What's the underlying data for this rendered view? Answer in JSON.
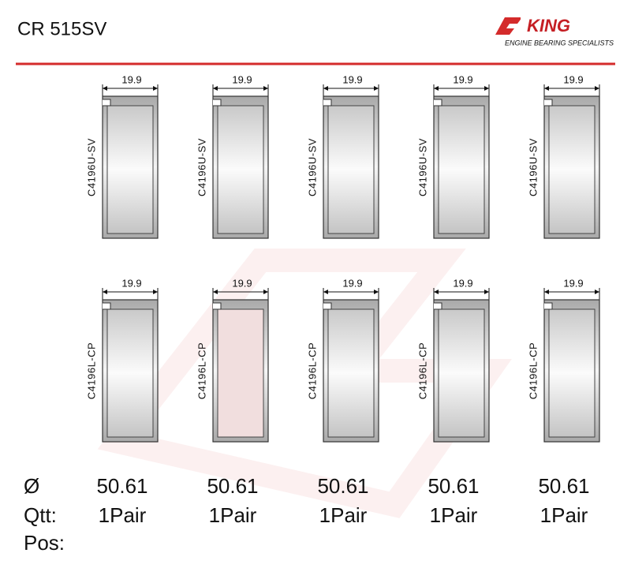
{
  "header": {
    "title": "CR 515SV"
  },
  "logo": {
    "brand": "KING",
    "tagline": "ENGINE BEARING SPECIALISTS"
  },
  "rows": [
    {
      "bearings": [
        {
          "width": "19.9",
          "part": "C4196U-SV"
        },
        {
          "width": "19.9",
          "part": "C4196U-SV"
        },
        {
          "width": "19.9",
          "part": "C4196U-SV"
        },
        {
          "width": "19.9",
          "part": "C4196U-SV"
        },
        {
          "width": "19.9",
          "part": "C4196U-SV"
        }
      ]
    },
    {
      "bearings": [
        {
          "width": "19.9",
          "part": "C4196L-CP"
        },
        {
          "width": "19.9",
          "part": "C4196L-CP"
        },
        {
          "width": "19.9",
          "part": "C4196L-CP"
        },
        {
          "width": "19.9",
          "part": "C4196L-CP"
        },
        {
          "width": "19.9",
          "part": "C4196L-CP"
        }
      ]
    }
  ],
  "specs": {
    "labels": [
      "Ø",
      "Qtt:",
      "Pos:"
    ],
    "diameters": [
      "50.61",
      "50.61",
      "50.61",
      "50.61",
      "50.61"
    ],
    "quantities": [
      "1Pair",
      "1Pair",
      "1Pair",
      "1Pair",
      "1Pair"
    ]
  }
}
